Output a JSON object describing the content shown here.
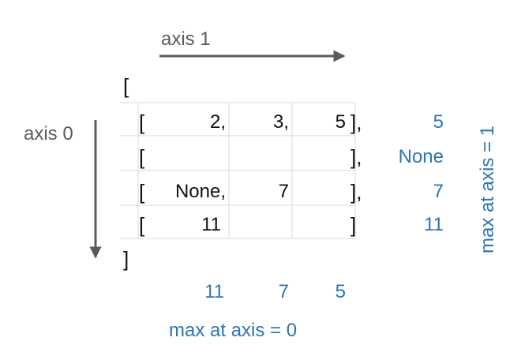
{
  "axis_labels": {
    "axis1": "axis 1",
    "axis0": "axis 0"
  },
  "brackets": {
    "outer_open": "[",
    "outer_close": "]",
    "row_open": "[",
    "row_close": "]",
    "row_close_comma": "],"
  },
  "rows": [
    {
      "cells": [
        "2,",
        "3,",
        "5"
      ],
      "close": "],",
      "row_max": "5"
    },
    {
      "cells": [
        "",
        "",
        ""
      ],
      "close": "],",
      "row_max": "None"
    },
    {
      "cells": [
        "None,",
        "7",
        ""
      ],
      "close": "],",
      "row_max": "7"
    },
    {
      "cells": [
        "11",
        "",
        ""
      ],
      "close": "]",
      "row_max": "11"
    }
  ],
  "column_max": [
    "11",
    "7",
    "5"
  ],
  "captions": {
    "axis0_result": "max at axis = 0",
    "axis1_result": "max  at axis = 1"
  },
  "colors": {
    "text": "#111111",
    "axis": "#5b5b5b",
    "result": "#2e74b5",
    "grid": "#d9d9d9"
  }
}
